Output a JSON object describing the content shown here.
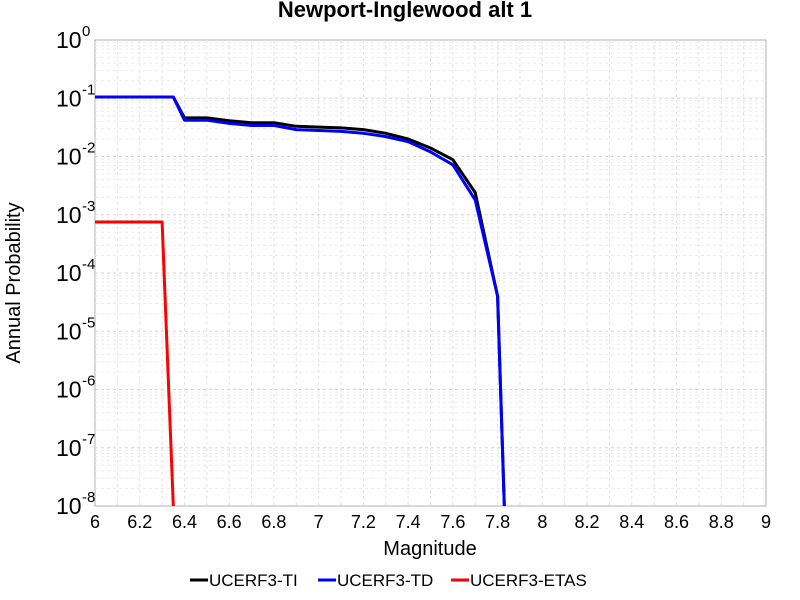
{
  "chart_data": {
    "type": "line",
    "title": "Newport-Inglewood alt 1",
    "xlabel": "Magnitude",
    "ylabel": "Annual Probability",
    "xlim": [
      6,
      9
    ],
    "ylim": [
      1e-08,
      1
    ],
    "yscale": "log",
    "grid": true,
    "legend_position": "bottom",
    "x_ticks": [
      "6",
      "6.2",
      "6.4",
      "6.6",
      "6.8",
      "7",
      "7.2",
      "7.4",
      "7.6",
      "7.8",
      "8",
      "8.2",
      "8.4",
      "8.6",
      "8.8",
      "9"
    ],
    "y_ticks": [
      {
        "base": "10",
        "exp": "0",
        "value": 1
      },
      {
        "base": "10",
        "exp": "-1",
        "value": 0.1
      },
      {
        "base": "10",
        "exp": "-2",
        "value": 0.01
      },
      {
        "base": "10",
        "exp": "-3",
        "value": 0.001
      },
      {
        "base": "10",
        "exp": "-4",
        "value": 0.0001
      },
      {
        "base": "10",
        "exp": "-5",
        "value": 1e-05
      },
      {
        "base": "10",
        "exp": "-6",
        "value": 1e-06
      },
      {
        "base": "10",
        "exp": "-7",
        "value": 1e-07
      },
      {
        "base": "10",
        "exp": "-8",
        "value": 1e-08
      }
    ],
    "series": [
      {
        "name": "UCERF3-TI",
        "color": "#000000",
        "x": [
          6.0,
          6.3,
          6.35,
          6.4,
          6.5,
          6.6,
          6.7,
          6.8,
          6.9,
          7.0,
          7.1,
          7.2,
          7.3,
          7.4,
          7.5,
          7.6,
          7.7,
          7.8,
          7.83
        ],
        "y": [
          0.105,
          0.105,
          0.105,
          0.046,
          0.046,
          0.041,
          0.038,
          0.038,
          0.033,
          0.032,
          0.031,
          0.029,
          0.025,
          0.02,
          0.014,
          0.0088,
          0.0024,
          4e-05,
          1e-08
        ]
      },
      {
        "name": "UCERF3-TD",
        "color": "#0000ff",
        "x": [
          6.0,
          6.3,
          6.35,
          6.4,
          6.5,
          6.6,
          6.7,
          6.8,
          6.9,
          7.0,
          7.1,
          7.2,
          7.3,
          7.4,
          7.5,
          7.6,
          7.7,
          7.8,
          7.83
        ],
        "y": [
          0.105,
          0.105,
          0.105,
          0.042,
          0.042,
          0.037,
          0.034,
          0.034,
          0.029,
          0.028,
          0.027,
          0.025,
          0.022,
          0.018,
          0.012,
          0.0072,
          0.0018,
          4e-05,
          1e-08
        ]
      },
      {
        "name": "UCERF3-ETAS",
        "color": "#ff0000",
        "x": [
          6.0,
          6.3,
          6.35
        ],
        "y": [
          0.00075,
          0.00075,
          1e-08
        ]
      }
    ]
  }
}
